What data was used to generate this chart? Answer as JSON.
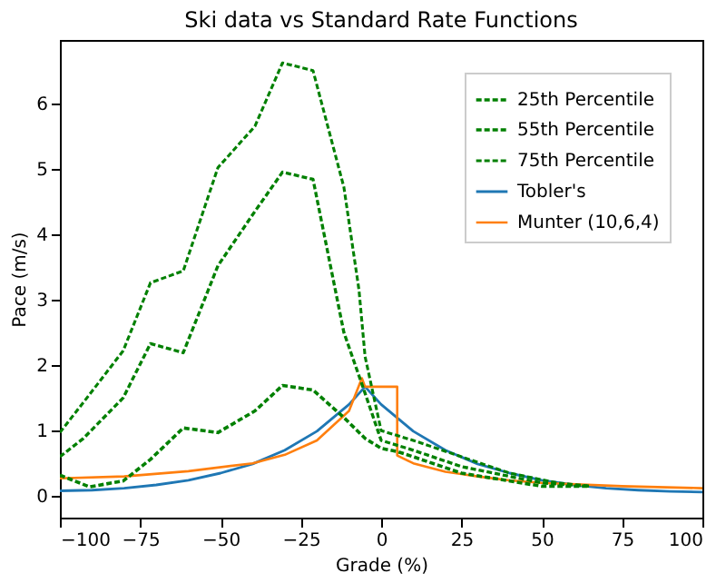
{
  "chart_data": {
    "type": "line",
    "title": "Ski data vs Standard Rate Functions",
    "xlabel": "Grade (%)",
    "ylabel": "Pace (m/s)",
    "xlim": [
      -100,
      100
    ],
    "xticks": [
      -100,
      -75,
      -50,
      -25,
      0,
      25,
      50,
      75,
      100
    ],
    "ylim": [
      -0.33,
      6.97
    ],
    "yticks": [
      0,
      1,
      2,
      3,
      4,
      5,
      6
    ],
    "grid": false,
    "legend": "top right",
    "series": [
      {
        "name": "25th Percentile",
        "color": "#008000",
        "line_style": "dashed",
        "x": [
          -100,
          -90.8,
          -80.3,
          -71.8,
          -61.6,
          -50.8,
          -39.3,
          -30.7,
          -21.2,
          -11.6,
          -5,
          0,
          5,
          10,
          25,
          50,
          65
        ],
        "values": [
          0.32,
          0.14,
          0.23,
          0.56,
          1.04,
          0.97,
          1.3,
          1.69,
          1.62,
          1.2,
          0.88,
          0.73,
          0.68,
          0.6,
          0.35,
          0.15,
          0.15
        ]
      },
      {
        "name": "55th Percentile",
        "color": "#008000",
        "line_style": "dashed",
        "x": [
          -100,
          -92.7,
          -80.3,
          -71.8,
          -61.6,
          -50.8,
          -39.3,
          -30.7,
          -21.2,
          -11.6,
          -5,
          0,
          10,
          25,
          50,
          65
        ],
        "values": [
          0.6,
          0.88,
          1.5,
          2.33,
          2.19,
          3.52,
          4.35,
          4.95,
          4.84,
          2.5,
          1.57,
          0.85,
          0.7,
          0.45,
          0.2,
          0.15
        ]
      },
      {
        "name": "75th Percentile",
        "color": "#008000",
        "line_style": "dashed",
        "x": [
          -100,
          -92.7,
          -80.3,
          -71.8,
          -61.6,
          -50.8,
          -39.3,
          -30.7,
          -21.2,
          -11.6,
          -6.9,
          -5,
          0,
          10,
          25,
          40,
          55,
          65
        ],
        "values": [
          0.97,
          1.43,
          2.22,
          3.26,
          3.44,
          5.02,
          5.65,
          6.62,
          6.5,
          4.72,
          3.15,
          2.13,
          1.0,
          0.85,
          0.6,
          0.35,
          0.2,
          0.15
        ]
      },
      {
        "name": "Tobler's",
        "color": "#1f77b4",
        "line_style": "solid",
        "x": [
          -100,
          -90,
          -80,
          -70,
          -60,
          -50,
          -40,
          -30,
          -20,
          -10,
          -5,
          0,
          10,
          20,
          30,
          40,
          50,
          60,
          70,
          80,
          90,
          100
        ],
        "values": [
          0.08,
          0.09,
          0.12,
          0.17,
          0.24,
          0.35,
          0.49,
          0.7,
          0.99,
          1.4,
          1.67,
          1.4,
          0.99,
          0.7,
          0.49,
          0.35,
          0.24,
          0.17,
          0.12,
          0.09,
          0.07,
          0.06
        ]
      },
      {
        "name": "Munter (10,6,4)",
        "color": "#ff7f0e",
        "line_style": "solid",
        "x": [
          -100,
          -80,
          -60,
          -40,
          -30,
          -20,
          -10,
          -6,
          -5,
          5,
          5,
          10,
          20,
          30,
          40,
          50,
          75,
          100
        ],
        "values": [
          0.27,
          0.3,
          0.38,
          0.5,
          0.63,
          0.85,
          1.3,
          1.8,
          1.67,
          1.67,
          0.62,
          0.5,
          0.37,
          0.3,
          0.24,
          0.2,
          0.15,
          0.12
        ]
      }
    ]
  }
}
